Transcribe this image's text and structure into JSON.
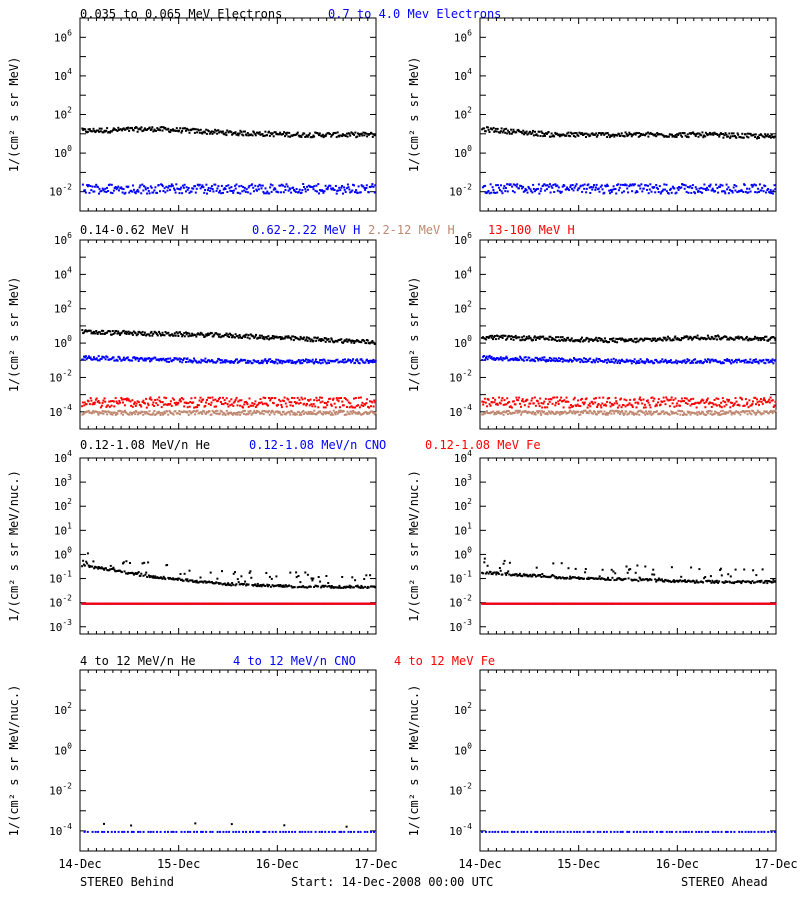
{
  "colors": {
    "black": "#000000",
    "blue": "#0000ff",
    "salmon": "#c08870",
    "red": "#ff0000"
  },
  "rows": [
    {
      "titles": [
        {
          "text": "0.035 to 0.065 MeV Electrons",
          "color": "#000000"
        },
        {
          "text": "0.7 to 4.0 Mev Electrons",
          "color": "#0000ff"
        }
      ],
      "ylabel": "1/(cm² s sr MeV)"
    },
    {
      "titles": [
        {
          "text": "0.14-0.62 MeV H",
          "color": "#000000"
        },
        {
          "text": "0.62-2.22 MeV H",
          "color": "#0000ff"
        },
        {
          "text": "2.2-12 MeV H",
          "color": "#c08870"
        },
        {
          "text": "13-100 MeV H",
          "color": "#ff0000"
        }
      ],
      "ylabel": "1/(cm² s sr MeV)"
    },
    {
      "titles": [
        {
          "text": "0.12-1.08 MeV/n He",
          "color": "#000000"
        },
        {
          "text": "0.12-1.08 MeV/n CNO",
          "color": "#0000ff"
        },
        {
          "text": "0.12-1.08 MeV Fe",
          "color": "#ff0000"
        }
      ],
      "ylabel": "1/(cm² s sr MeV/nuc.)"
    },
    {
      "titles": [
        {
          "text": "4 to 12 MeV/n He",
          "color": "#000000"
        },
        {
          "text": "4 to 12 MeV/n CNO",
          "color": "#0000ff"
        },
        {
          "text": "4 to 12 MeV Fe",
          "color": "#ff0000"
        }
      ],
      "ylabel": "1/(cm² s sr MeV/nuc.)"
    }
  ],
  "footer": {
    "left": "STEREO Behind",
    "center": "Start: 14-Dec-2008 00:00 UTC",
    "right": "STEREO Ahead"
  },
  "chart_data": [
    {
      "panel": "behind-electrons",
      "type": "scatter",
      "x_ticks": [
        "14-Dec",
        "15-Dec",
        "16-Dec",
        "17-Dec"
      ],
      "xlim": [
        0,
        3
      ],
      "ylog": true,
      "ylim_exp": [
        -3,
        7
      ],
      "y_tick_exps": [
        -2,
        0,
        2,
        4,
        6
      ],
      "series": [
        {
          "name": "0.035 to 0.065 MeV Electrons",
          "color": "#000000",
          "values_log10": [
            1.2,
            1.3,
            1.1,
            1.0,
            1.0
          ]
        },
        {
          "name": "0.7 to 4.0 Mev Electrons",
          "color": "#0000ff",
          "values_log10": [
            -1.8,
            -1.8,
            -1.8,
            -1.8,
            -1.8
          ]
        }
      ]
    },
    {
      "panel": "ahead-electrons",
      "type": "scatter",
      "x_ticks": [
        "14-Dec",
        "15-Dec",
        "16-Dec",
        "17-Dec"
      ],
      "xlim": [
        0,
        3
      ],
      "ylog": true,
      "ylim_exp": [
        -3,
        7
      ],
      "y_tick_exps": [
        -2,
        0,
        2,
        4,
        6
      ],
      "series": [
        {
          "name": "0.035 to 0.065 MeV Electrons",
          "color": "#000000",
          "values_log10": [
            1.3,
            1.0,
            1.0,
            1.0,
            0.9
          ]
        },
        {
          "name": "0.7 to 4.0 Mev Electrons",
          "color": "#0000ff",
          "values_log10": [
            -1.8,
            -1.8,
            -1.8,
            -1.8,
            -1.8
          ]
        }
      ]
    },
    {
      "panel": "behind-protons",
      "type": "scatter",
      "x_ticks": [
        "14-Dec",
        "15-Dec",
        "16-Dec",
        "17-Dec"
      ],
      "xlim": [
        0,
        3
      ],
      "ylog": true,
      "ylim_exp": [
        -5,
        6
      ],
      "y_tick_exps": [
        -4,
        -2,
        0,
        2,
        4,
        6
      ],
      "series": [
        {
          "name": "0.14-0.62 MeV H",
          "color": "#000000",
          "values_log10": [
            0.7,
            0.6,
            0.5,
            0.3,
            0.1
          ]
        },
        {
          "name": "0.62-2.22 MeV H",
          "color": "#0000ff",
          "values_log10": [
            -0.8,
            -0.9,
            -1.0,
            -1.0,
            -1.0
          ]
        },
        {
          "name": "2.2-12 MeV H",
          "color": "#c08870",
          "values_log10": [
            -4.0,
            -4.0,
            -4.0,
            -4.0,
            -4.0
          ]
        },
        {
          "name": "13-100 MeV H",
          "color": "#ff0000",
          "values_log10": [
            -3.4,
            -3.4,
            -3.4,
            -3.4,
            -3.4
          ]
        }
      ]
    },
    {
      "panel": "ahead-protons",
      "type": "scatter",
      "x_ticks": [
        "14-Dec",
        "15-Dec",
        "16-Dec",
        "17-Dec"
      ],
      "xlim": [
        0,
        3
      ],
      "ylog": true,
      "ylim_exp": [
        -5,
        6
      ],
      "y_tick_exps": [
        -4,
        -2,
        0,
        2,
        4,
        6
      ],
      "series": [
        {
          "name": "0.14-0.62 MeV H",
          "color": "#000000",
          "values_log10": [
            0.4,
            0.3,
            0.2,
            0.4,
            0.3
          ]
        },
        {
          "name": "0.62-2.22 MeV H",
          "color": "#0000ff",
          "values_log10": [
            -0.8,
            -0.9,
            -1.0,
            -1.0,
            -1.0
          ]
        },
        {
          "name": "2.2-12 MeV H",
          "color": "#c08870",
          "values_log10": [
            -4.0,
            -4.0,
            -4.0,
            -4.0,
            -4.0
          ]
        },
        {
          "name": "13-100 MeV H",
          "color": "#ff0000",
          "values_log10": [
            -3.4,
            -3.4,
            -3.4,
            -3.4,
            -3.4
          ]
        }
      ]
    },
    {
      "panel": "behind-low-ions",
      "type": "scatter",
      "x_ticks": [
        "14-Dec",
        "15-Dec",
        "16-Dec",
        "17-Dec"
      ],
      "xlim": [
        0,
        3
      ],
      "ylog": true,
      "ylim_exp": [
        -3.3,
        4
      ],
      "y_tick_exps": [
        -3,
        -2,
        -1,
        0,
        1,
        2,
        3,
        4
      ],
      "series": [
        {
          "name": "0.12-1.08 MeV/n He",
          "color": "#000000",
          "values_log10": [
            -0.4,
            -0.9,
            -1.2,
            -1.3,
            -1.3
          ]
        },
        {
          "name": "0.12-1.08 MeV/n CNO",
          "color": "#0000ff",
          "values_log10": [
            -2.0,
            -2.0,
            -2.0,
            -2.0,
            -2.0
          ]
        },
        {
          "name": "0.12-1.08 MeV Fe",
          "color": "#ff0000",
          "values_log10": [
            -2.0,
            -2.0,
            -2.0,
            -2.0,
            -2.0
          ]
        }
      ]
    },
    {
      "panel": "ahead-low-ions",
      "type": "scatter",
      "x_ticks": [
        "14-Dec",
        "15-Dec",
        "16-Dec",
        "17-Dec"
      ],
      "xlim": [
        0,
        3
      ],
      "ylog": true,
      "ylim_exp": [
        -3.3,
        4
      ],
      "y_tick_exps": [
        -3,
        -2,
        -1,
        0,
        1,
        2,
        3,
        4
      ],
      "series": [
        {
          "name": "0.12-1.08 MeV/n He",
          "color": "#000000",
          "values_log10": [
            -0.7,
            -0.9,
            -1.0,
            -1.1,
            -1.1
          ]
        },
        {
          "name": "0.12-1.08 MeV/n CNO",
          "color": "#0000ff",
          "values_log10": [
            -2.0,
            -2.0,
            -2.0,
            -2.0,
            -2.0
          ]
        },
        {
          "name": "0.12-1.08 MeV Fe",
          "color": "#ff0000",
          "values_log10": [
            -2.0,
            -2.0,
            -2.0,
            -2.0,
            -2.0
          ]
        }
      ]
    },
    {
      "panel": "behind-high-ions",
      "type": "scatter",
      "x_ticks": [
        "14-Dec",
        "15-Dec",
        "16-Dec",
        "17-Dec"
      ],
      "xlim": [
        0,
        3
      ],
      "ylog": true,
      "ylim_exp": [
        -5,
        4
      ],
      "y_tick_exps": [
        -4,
        -2,
        0,
        2
      ],
      "series": [
        {
          "name": "4 to 12 MeV/n He",
          "color": "#000000",
          "values_log10": [
            -3.7
          ]
        },
        {
          "name": "4 to 12 MeV/n CNO",
          "color": "#0000ff",
          "values_log10": [
            -4.0,
            -4.0,
            -4.0,
            -4.0,
            -4.0
          ]
        },
        {
          "name": "4 to 12 MeV Fe",
          "color": "#ff0000",
          "values_log10": []
        }
      ]
    },
    {
      "panel": "ahead-high-ions",
      "type": "scatter",
      "x_ticks": [
        "14-Dec",
        "15-Dec",
        "16-Dec",
        "17-Dec"
      ],
      "xlim": [
        0,
        3
      ],
      "ylog": true,
      "ylim_exp": [
        -5,
        4
      ],
      "y_tick_exps": [
        -4,
        -2,
        0,
        2
      ],
      "series": [
        {
          "name": "4 to 12 MeV/n He",
          "color": "#000000",
          "values_log10": []
        },
        {
          "name": "4 to 12 MeV/n CNO",
          "color": "#0000ff",
          "values_log10": [
            -4.0,
            -4.0,
            -4.0,
            -4.0,
            -4.0
          ]
        },
        {
          "name": "4 to 12 MeV Fe",
          "color": "#ff0000",
          "values_log10": []
        }
      ]
    }
  ]
}
